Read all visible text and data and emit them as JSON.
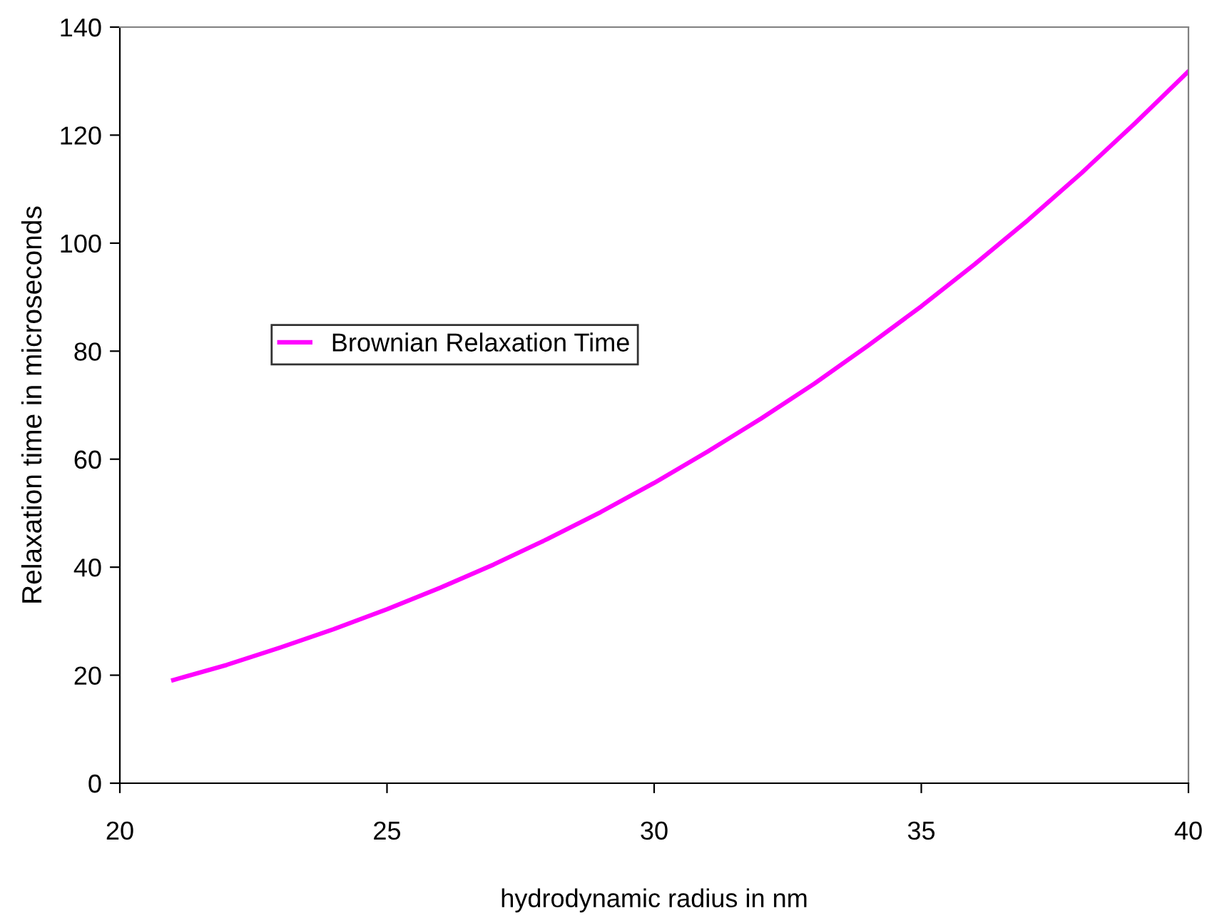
{
  "chart_data": {
    "type": "line",
    "xlabel": "hydrodynamic radius in nm",
    "ylabel": "Relaxation time in microseconds",
    "x": [
      21,
      22,
      23,
      24,
      25,
      26,
      27,
      28,
      29,
      30,
      31,
      32,
      33,
      34,
      35,
      36,
      37,
      38,
      39,
      40
    ],
    "series": [
      {
        "name": "Brownian Relaxation Time",
        "color": "#ff00ff",
        "values": [
          19.1,
          21.9,
          25.1,
          28.5,
          32.2,
          36.2,
          40.5,
          45.2,
          50.2,
          55.6,
          61.4,
          67.5,
          74.0,
          81.0,
          88.3,
          96.1,
          104.3,
          113.0,
          122.2,
          131.8
        ]
      }
    ],
    "xlim": [
      20,
      40
    ],
    "xticks": [
      20,
      25,
      30,
      35,
      40
    ],
    "ylim": [
      0,
      140
    ],
    "yticks": [
      0,
      20,
      40,
      60,
      80,
      100,
      120,
      140
    ],
    "grid": false,
    "legend": "center left",
    "marker": "none",
    "line_style": "solid"
  }
}
